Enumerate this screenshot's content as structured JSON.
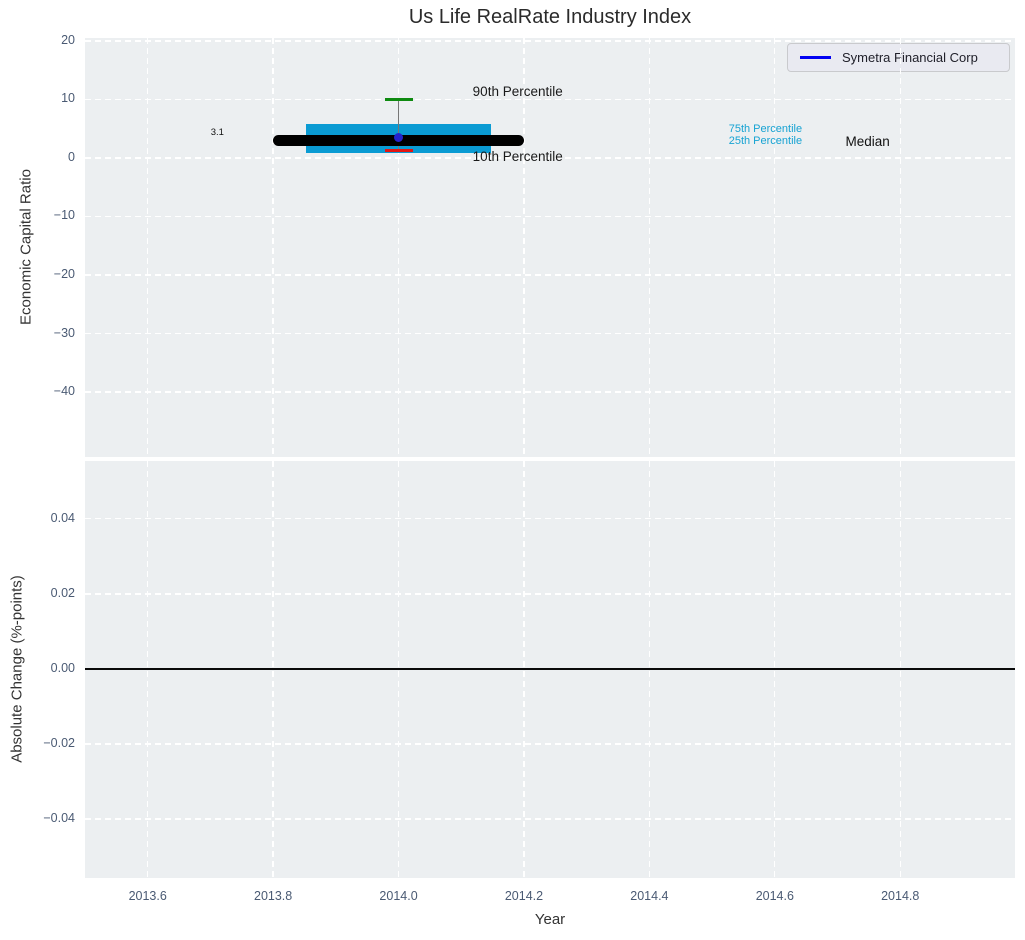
{
  "chart_data": {
    "type": "boxplot",
    "title": "Us Life RealRate Industry Index",
    "xlabel": "Year",
    "xlim": [
      2013.5,
      2014.983
    ],
    "xticks": [
      {
        "v": 2013.6,
        "label": "2013.6"
      },
      {
        "v": 2013.8,
        "label": "2013.8"
      },
      {
        "v": 2014.0,
        "label": "2014.0"
      },
      {
        "v": 2014.2,
        "label": "2014.2"
      },
      {
        "v": 2014.4,
        "label": "2014.4"
      },
      {
        "v": 2014.6,
        "label": "2014.6"
      },
      {
        "v": 2014.8,
        "label": "2014.8"
      }
    ],
    "legend": {
      "label": "Symetra Financial Corp",
      "line_color": "#0101f2",
      "position": "upper right"
    },
    "panels": [
      {
        "ylabel": "Economic Capital Ratio",
        "ylim": [
          -51.1,
          20.5
        ],
        "yticks": [
          {
            "v": 20,
            "label": "20"
          },
          {
            "v": 10,
            "label": "10"
          },
          {
            "v": 0,
            "label": "0"
          },
          {
            "v": -10,
            "label": "−10"
          },
          {
            "v": -20,
            "label": "−20"
          },
          {
            "v": -30,
            "label": "−30"
          },
          {
            "v": -40,
            "label": "−40"
          }
        ],
        "box": {
          "x": 2014.0,
          "box_left": 2013.852,
          "box_right": 2014.148,
          "median_left": 2013.8,
          "median_right": 2014.2,
          "p90": 10.0,
          "p75": 5.8,
          "median": 3.0,
          "p25": 0.9,
          "p10": 1.3,
          "company_value": 3.1
        },
        "annotations": [
          {
            "text": "3.1",
            "x": 2013.711,
            "y": 4.2,
            "color": "#111111",
            "size": 9.5
          },
          {
            "text": "90th Percentile",
            "x": 2014.19,
            "y": 11.3,
            "color": "#1a1a1a",
            "size": 13.5
          },
          {
            "text": "10th Percentile",
            "x": 2014.19,
            "y": 0.2,
            "color": "#1a1a1a",
            "size": 13.5
          },
          {
            "text": "75th Percentile",
            "x": 2014.585,
            "y": 4.8,
            "color": "#17a3d3",
            "size": 11
          },
          {
            "text": "25th Percentile",
            "x": 2014.585,
            "y": 2.8,
            "color": "#17a3d3",
            "size": 11
          },
          {
            "text": "Median",
            "x": 2014.748,
            "y": 2.8,
            "color": "#111111",
            "size": 13.5
          }
        ]
      },
      {
        "ylabel": "Absolute Change (%-points)",
        "ylim": [
          -0.0557,
          0.0554
        ],
        "yticks": [
          {
            "v": 0.04,
            "label": "0.04"
          },
          {
            "v": 0.02,
            "label": "0.02"
          },
          {
            "v": 0.0,
            "label": "0.00"
          },
          {
            "v": -0.02,
            "label": "−0.02"
          },
          {
            "v": -0.04,
            "label": "−0.04"
          }
        ],
        "zero_line": 0.0
      }
    ],
    "colors": {
      "axes_bg": "#eceff1",
      "grid": "#ffffff",
      "tick_label": "#4a5a73",
      "box": "#0a9bd3",
      "median": "#000000",
      "p90_cap": "#0e8a10",
      "p10_cap": "#e21613",
      "whisker": "#777777",
      "company_dot": "#2323cd",
      "zero_line": "#0a0a0a"
    }
  }
}
